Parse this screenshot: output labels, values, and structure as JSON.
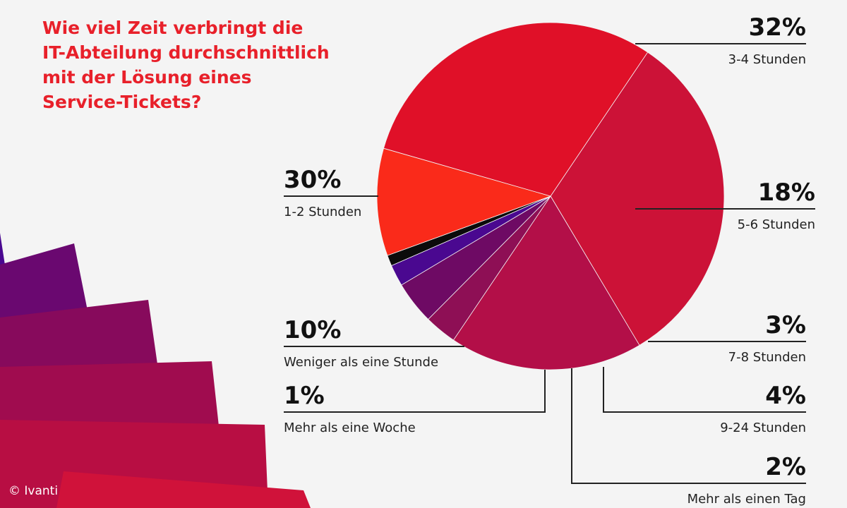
{
  "title_lines": [
    "Wie viel Zeit verbringt die",
    "IT-Abteilung durchschnittlich",
    "mit der Lösung eines",
    "Service-Tickets?"
  ],
  "credit": "© Ivanti",
  "chart_data": {
    "type": "pie",
    "title": "Wie viel Zeit verbringt die IT-Abteilung durchschnittlich mit der Lösung eines Service-Tickets?",
    "slices": [
      {
        "label": "3-4 Stunden",
        "value": 32,
        "value_label": "32%",
        "color": "#cc1237"
      },
      {
        "label": "5-6 Stunden",
        "value": 18,
        "value_label": "18%",
        "color": "#b30f48"
      },
      {
        "label": "7-8 Stunden",
        "value": 3,
        "value_label": "3%",
        "color": "#8e0f55"
      },
      {
        "label": "9-24 Stunden",
        "value": 4,
        "value_label": "4%",
        "color": "#6e0a64"
      },
      {
        "label": "Mehr als einen Tag",
        "value": 2,
        "value_label": "2%",
        "color": "#4a0890"
      },
      {
        "label": "Mehr als eine Woche",
        "value": 1,
        "value_label": "1%",
        "color": "#0b0b0b"
      },
      {
        "label": "Weniger als eine Stunde",
        "value": 10,
        "value_label": "10%",
        "color": "#fa2a1a"
      },
      {
        "label": "1-2 Stunden",
        "value": 30,
        "value_label": "30%",
        "color": "#e01028"
      }
    ]
  }
}
